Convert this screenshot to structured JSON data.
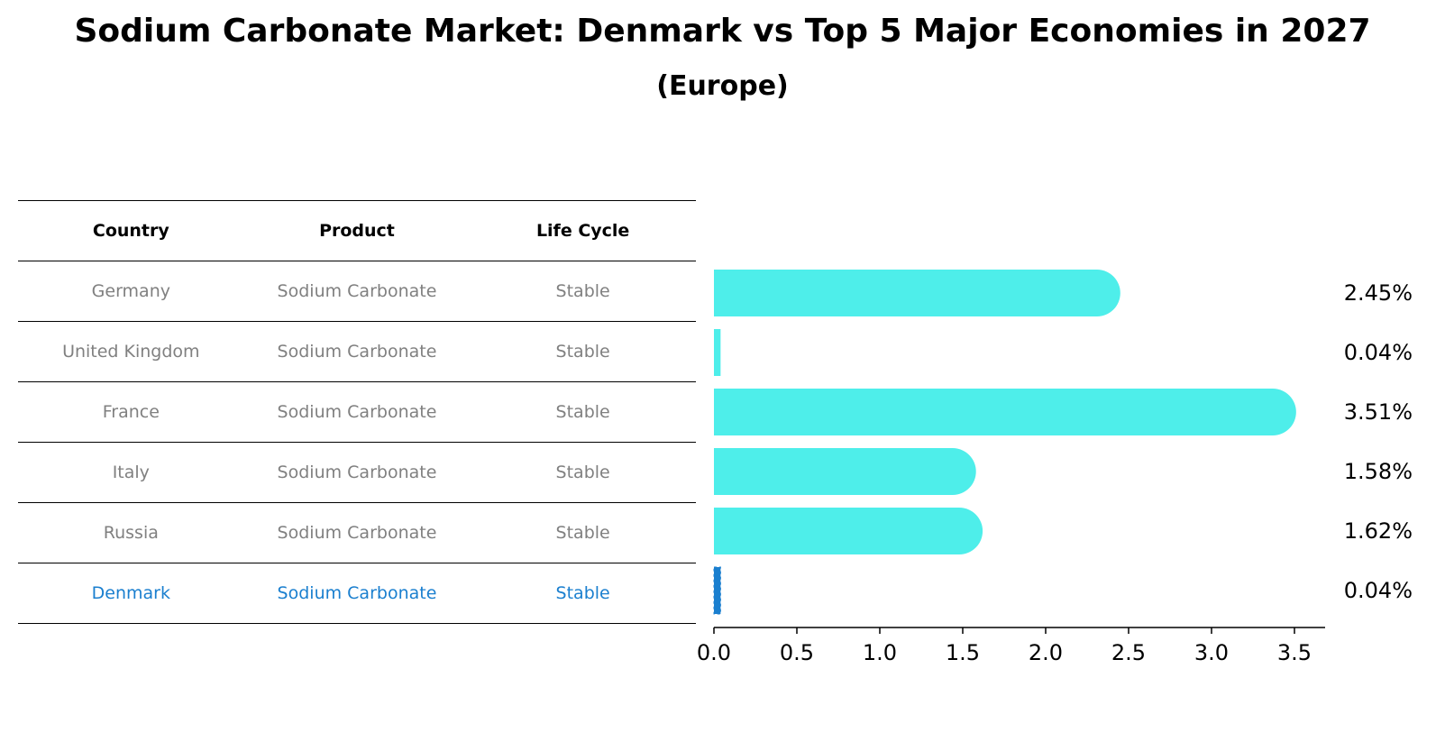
{
  "title": "Sodium Carbonate Market: Denmark vs Top 5 Major Economies in 2027",
  "subtitle": "(Europe)",
  "table": {
    "headers": [
      "Country",
      "Product",
      "Life Cycle"
    ],
    "rows": [
      [
        "Germany",
        "Sodium Carbonate",
        "Stable"
      ],
      [
        "United Kingdom",
        "Sodium Carbonate",
        "Stable"
      ],
      [
        "France",
        "Sodium Carbonate",
        "Stable"
      ],
      [
        "Italy",
        "Sodium Carbonate",
        "Stable"
      ],
      [
        "Russia",
        "Sodium Carbonate",
        "Stable"
      ],
      [
        "Denmark",
        "Sodium Carbonate",
        "Stable"
      ]
    ]
  },
  "colors": {
    "bar": "#4eeeea",
    "highlight": "#1a7fcf",
    "muted": "#808080"
  },
  "chart_data": {
    "type": "bar",
    "orientation": "horizontal",
    "title": "Sodium Carbonate Market: Denmark vs Top 5 Major Economies in 2027",
    "subtitle": "(Europe)",
    "categories": [
      "Germany",
      "United Kingdom",
      "France",
      "Italy",
      "Russia",
      "Denmark"
    ],
    "values": [
      2.45,
      0.04,
      3.51,
      1.58,
      1.62,
      0.04
    ],
    "value_labels": [
      "2.45%",
      "0.04%",
      "3.51%",
      "1.58%",
      "1.62%",
      "0.04%"
    ],
    "highlight": "Denmark",
    "xlim": [
      0,
      3.7
    ],
    "xticks": [
      0.0,
      0.5,
      1.0,
      1.5,
      2.0,
      2.5,
      3.0,
      3.5
    ],
    "xtick_labels": [
      "0.0",
      "0.5",
      "1.0",
      "1.5",
      "2.0",
      "2.5",
      "3.0",
      "3.5"
    ],
    "xlabel": "",
    "ylabel": ""
  }
}
